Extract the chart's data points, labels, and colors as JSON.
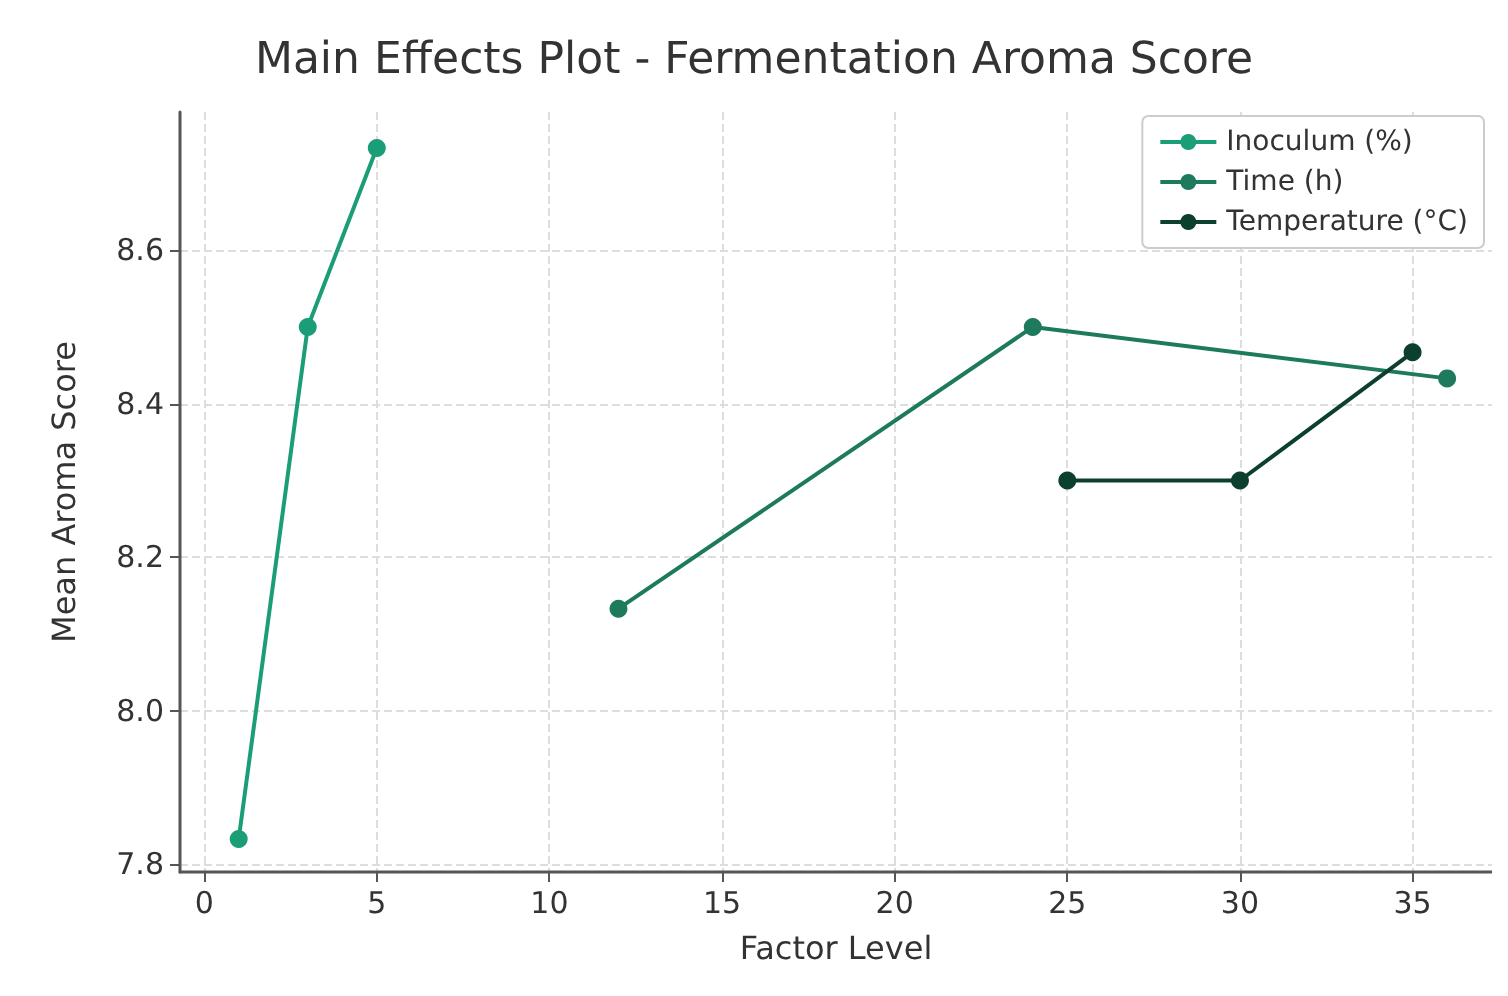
{
  "chart_data": {
    "type": "line",
    "title": "Main Effects Plot - Fermentation Aroma Score",
    "xlabel": "Factor Level",
    "ylabel": "Mean Aroma Score",
    "series": [
      {
        "name": "Inoculum (%)",
        "color": "#1b9e77",
        "x": [
          1,
          3,
          5
        ],
        "values": [
          7.833,
          8.5,
          8.733
        ]
      },
      {
        "name": "Time (h)",
        "color": "#1e7a5c",
        "x": [
          12,
          24,
          36
        ],
        "values": [
          8.133,
          8.5,
          8.433
        ]
      },
      {
        "name": "Temperature (°C)",
        "color": "#0d402c",
        "x": [
          25,
          30,
          35
        ],
        "values": [
          8.3,
          8.3,
          8.467
        ]
      }
    ],
    "xlim": [
      -0.7,
      37.3
    ],
    "xticks": [
      0,
      5,
      10,
      15,
      20,
      25,
      30,
      35
    ],
    "ylim": [
      7.79,
      8.78
    ],
    "yticks": [
      {
        "value": 7.8,
        "label": "7.8"
      },
      {
        "value": 8.0,
        "label": "8.0"
      },
      {
        "value": 8.2,
        "label": "8.2"
      },
      {
        "value": 8.4,
        "label": "8.4"
      },
      {
        "value": 8.6,
        "label": "8.6"
      }
    ],
    "grid": true,
    "legend": "top right",
    "marker": "circle",
    "line_style": "solid"
  }
}
